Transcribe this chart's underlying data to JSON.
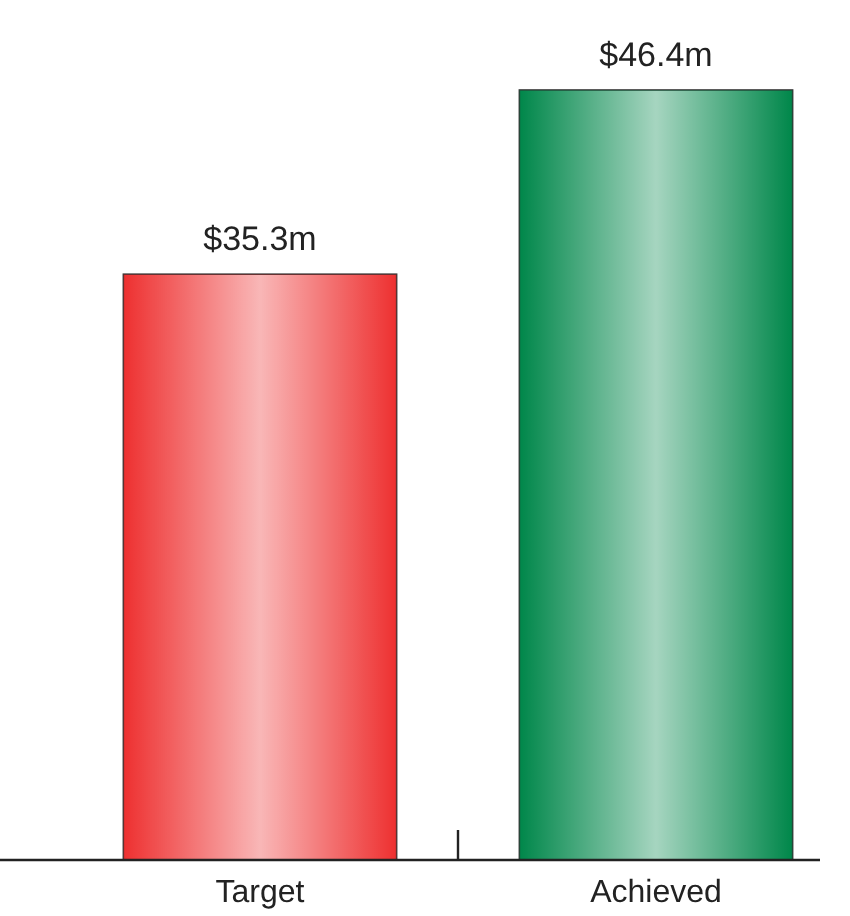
{
  "chart_data": {
    "type": "bar",
    "categories": [
      "Target",
      "Achieved"
    ],
    "values": [
      35.3,
      46.4
    ],
    "colors": [
      "#ee3030",
      "#00874a"
    ],
    "value_labels": [
      "$35.3m",
      "$46.4m"
    ]
  }
}
